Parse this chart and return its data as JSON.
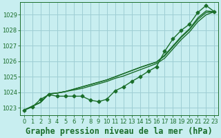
{
  "title": "Graphe pression niveau de la mer (hPa)",
  "background_color": "#c8eef0",
  "grid_color": "#9ecdd4",
  "line_color": "#1a6e2a",
  "xlim": [
    -0.5,
    23.5
  ],
  "ylim": [
    1022.5,
    1029.8
  ],
  "yticks": [
    1023,
    1024,
    1025,
    1026,
    1027,
    1028,
    1029
  ],
  "xticks": [
    0,
    1,
    2,
    3,
    4,
    5,
    6,
    7,
    8,
    9,
    10,
    11,
    12,
    13,
    14,
    15,
    16,
    17,
    18,
    19,
    20,
    21,
    22,
    23
  ],
  "series_smooth": [
    [
      1022.85,
      1023.1,
      1023.35,
      1023.9,
      1023.95,
      1024.05,
      1024.15,
      1024.25,
      1024.4,
      1024.55,
      1024.7,
      1024.9,
      1025.05,
      1025.25,
      1025.45,
      1025.65,
      1025.85,
      1026.2,
      1026.8,
      1027.4,
      1027.9,
      1028.55,
      1029.0,
      1029.2
    ],
    [
      1022.85,
      1023.1,
      1023.35,
      1023.9,
      1023.95,
      1024.05,
      1024.2,
      1024.35,
      1024.5,
      1024.65,
      1024.8,
      1025.0,
      1025.2,
      1025.4,
      1025.6,
      1025.78,
      1025.95,
      1026.35,
      1026.95,
      1027.55,
      1028.05,
      1028.7,
      1029.15,
      1029.2
    ],
    [
      1022.85,
      1023.1,
      1023.35,
      1023.9,
      1023.95,
      1024.05,
      1024.2,
      1024.35,
      1024.5,
      1024.65,
      1024.8,
      1025.0,
      1025.2,
      1025.4,
      1025.6,
      1025.78,
      1025.95,
      1026.4,
      1027.0,
      1027.6,
      1028.1,
      1028.8,
      1029.25,
      1029.2
    ]
  ],
  "series_marker": [
    1022.85,
    1023.05,
    1023.55,
    1023.85,
    1023.75,
    1023.75,
    1023.75,
    1023.75,
    1023.5,
    1023.4,
    1023.55,
    1024.1,
    1024.35,
    1024.7,
    1025.0,
    1025.35,
    1025.65,
    1026.65,
    1027.45,
    1028.0,
    1028.4,
    1029.15,
    1029.6,
    1029.2
  ],
  "marker": "D",
  "marker_size": 2.5,
  "linewidth": 1.0,
  "title_fontsize": 8.5,
  "tick_fontsize": 6.0
}
